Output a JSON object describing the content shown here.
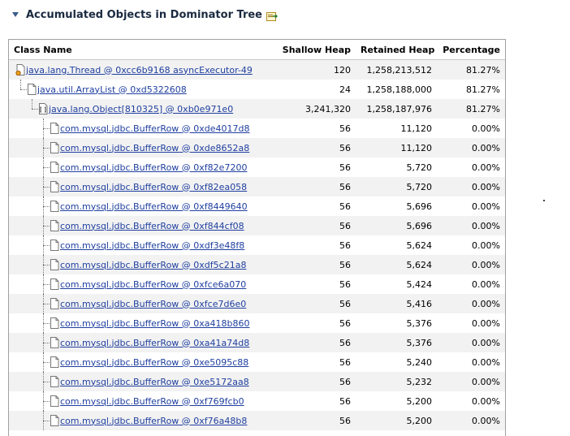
{
  "section": {
    "title": "Accumulated Objects in Dominator Tree",
    "twisty_icon": "triangle-down-icon",
    "action_icon": "export-icon"
  },
  "columns": [
    "Class Name",
    "Shallow Heap",
    "Retained Heap",
    "Percentage"
  ],
  "rows": [
    {
      "name": "java.lang.Thread @ 0xcc6b9168 asyncExecutor-49",
      "shallow": "120",
      "retained": "1,258,213,512",
      "pct": "81.27%",
      "level": 0,
      "icon": "thread-object-icon"
    },
    {
      "name": "java.util.ArrayList @ 0xd5322608",
      "shallow": "24",
      "retained": "1,258,188,000",
      "pct": "81.27%",
      "level": 1,
      "icon": "object-icon"
    },
    {
      "name": "java.lang.Object[810325] @ 0xb0e971e0",
      "shallow": "3,241,320",
      "retained": "1,258,187,976",
      "pct": "81.27%",
      "level": 2,
      "icon": "array-object-icon"
    },
    {
      "name": "com.mysql.jdbc.BufferRow @ 0xde4017d8",
      "shallow": "56",
      "retained": "11,120",
      "pct": "0.00%",
      "level": 3,
      "icon": "object-icon"
    },
    {
      "name": "com.mysql.jdbc.BufferRow @ 0xde8652a8",
      "shallow": "56",
      "retained": "11,120",
      "pct": "0.00%",
      "level": 3,
      "icon": "object-icon"
    },
    {
      "name": "com.mysql.jdbc.BufferRow @ 0xf82e7200",
      "shallow": "56",
      "retained": "5,720",
      "pct": "0.00%",
      "level": 3,
      "icon": "object-icon"
    },
    {
      "name": "com.mysql.jdbc.BufferRow @ 0xf82ea058",
      "shallow": "56",
      "retained": "5,720",
      "pct": "0.00%",
      "level": 3,
      "icon": "object-icon"
    },
    {
      "name": "com.mysql.jdbc.BufferRow @ 0xf8449640",
      "shallow": "56",
      "retained": "5,696",
      "pct": "0.00%",
      "level": 3,
      "icon": "object-icon"
    },
    {
      "name": "com.mysql.jdbc.BufferRow @ 0xf844cf08",
      "shallow": "56",
      "retained": "5,696",
      "pct": "0.00%",
      "level": 3,
      "icon": "object-icon"
    },
    {
      "name": "com.mysql.jdbc.BufferRow @ 0xdf3e48f8",
      "shallow": "56",
      "retained": "5,624",
      "pct": "0.00%",
      "level": 3,
      "icon": "object-icon"
    },
    {
      "name": "com.mysql.jdbc.BufferRow @ 0xdf5c21a8",
      "shallow": "56",
      "retained": "5,624",
      "pct": "0.00%",
      "level": 3,
      "icon": "object-icon"
    },
    {
      "name": "com.mysql.jdbc.BufferRow @ 0xfce6a070",
      "shallow": "56",
      "retained": "5,424",
      "pct": "0.00%",
      "level": 3,
      "icon": "object-icon"
    },
    {
      "name": "com.mysql.jdbc.BufferRow @ 0xfce7d6e0",
      "shallow": "56",
      "retained": "5,416",
      "pct": "0.00%",
      "level": 3,
      "icon": "object-icon"
    },
    {
      "name": "com.mysql.jdbc.BufferRow @ 0xa418b860",
      "shallow": "56",
      "retained": "5,376",
      "pct": "0.00%",
      "level": 3,
      "icon": "object-icon"
    },
    {
      "name": "com.mysql.jdbc.BufferRow @ 0xa41a74d8",
      "shallow": "56",
      "retained": "5,376",
      "pct": "0.00%",
      "level": 3,
      "icon": "object-icon"
    },
    {
      "name": "com.mysql.jdbc.BufferRow @ 0xe5095c88",
      "shallow": "56",
      "retained": "5,240",
      "pct": "0.00%",
      "level": 3,
      "icon": "object-icon"
    },
    {
      "name": "com.mysql.jdbc.BufferRow @ 0xe5172aa8",
      "shallow": "56",
      "retained": "5,232",
      "pct": "0.00%",
      "level": 3,
      "icon": "object-icon"
    },
    {
      "name": "com.mysql.jdbc.BufferRow @ 0xf769fcb0",
      "shallow": "56",
      "retained": "5,200",
      "pct": "0.00%",
      "level": 3,
      "icon": "object-icon"
    },
    {
      "name": "com.mysql.jdbc.BufferRow @ 0xf76a48b8",
      "shallow": "56",
      "retained": "5,200",
      "pct": "0.00%",
      "level": 3,
      "icon": "object-icon"
    }
  ],
  "colors": {
    "link": "#1f3f9f",
    "row_alt": "#f2f2f2",
    "title": "#1a2a40"
  }
}
